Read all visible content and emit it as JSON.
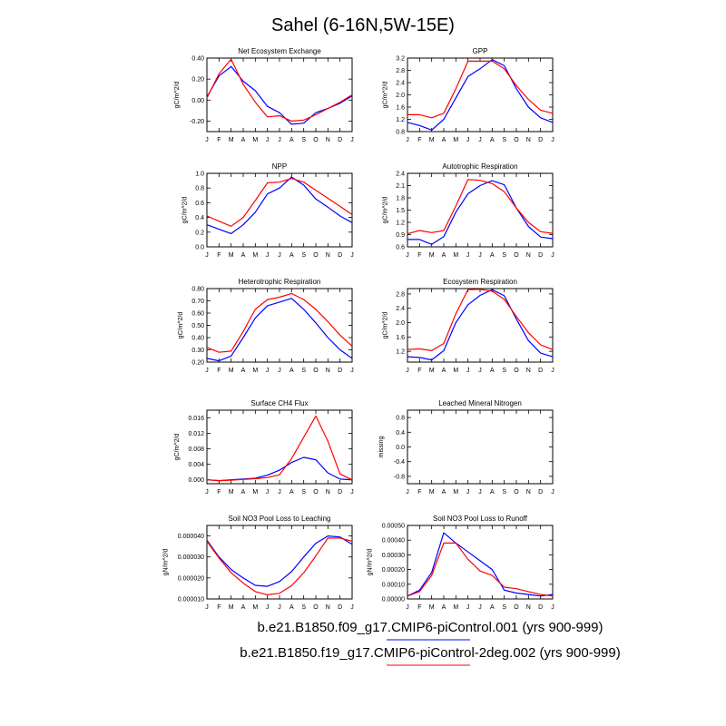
{
  "title": "Sahel (6-16N,5W-15E)",
  "month_labels": [
    "J",
    "F",
    "M",
    "A",
    "M",
    "J",
    "J",
    "A",
    "S",
    "O",
    "N",
    "D",
    "J"
  ],
  "series": [
    {
      "name": "b.e21.B1850.f09_g17.CMIP6-piControl.001 (yrs 900-999)",
      "color": "#0000ff"
    },
    {
      "name": "b.e21.B1850.f19_g17.CMIP6-piControl-2deg.002 (yrs 900-999)",
      "color": "#ff0000"
    }
  ],
  "chart_data": [
    {
      "type": "line",
      "title": "Net Ecosystem Exchange",
      "ylabel": "gC/m^2/d",
      "ylim": [
        -0.3,
        0.4
      ],
      "yticks": [
        "0.40",
        "0.20",
        "0.00",
        "-0.20"
      ],
      "ytick_values": [
        0.4,
        0.2,
        0.0,
        -0.2
      ],
      "series": [
        {
          "values": [
            0.03,
            0.23,
            0.32,
            0.18,
            0.09,
            -0.06,
            -0.12,
            -0.23,
            -0.22,
            -0.12,
            -0.08,
            -0.03,
            0.04
          ]
        },
        {
          "values": [
            0.02,
            0.25,
            0.39,
            0.15,
            -0.02,
            -0.16,
            -0.15,
            -0.2,
            -0.19,
            -0.14,
            -0.08,
            -0.02,
            0.05
          ]
        }
      ]
    },
    {
      "type": "line",
      "title": "GPP",
      "ylabel": "gC/m^2/d",
      "ylim": [
        0.8,
        3.2
      ],
      "yticks": [
        "3.2",
        "2.8",
        "2.4",
        "2.0",
        "1.6",
        "1.2",
        "0.8"
      ],
      "ytick_values": [
        3.2,
        2.8,
        2.4,
        2.0,
        1.6,
        1.2,
        0.8
      ],
      "series": [
        {
          "values": [
            1.1,
            1.0,
            0.85,
            1.2,
            1.9,
            2.6,
            2.85,
            3.15,
            2.95,
            2.2,
            1.6,
            1.25,
            1.1
          ]
        },
        {
          "values": [
            1.35,
            1.35,
            1.25,
            1.4,
            2.2,
            3.1,
            3.1,
            3.1,
            2.85,
            2.3,
            1.85,
            1.5,
            1.4
          ]
        }
      ]
    },
    {
      "type": "line",
      "title": "NPP",
      "ylabel": "gC/m^2/d",
      "ylim": [
        0.0,
        1.0
      ],
      "yticks": [
        "1.0",
        "0.8",
        "0.6",
        "0.4",
        "0.2",
        "0.0"
      ],
      "ytick_values": [
        1.0,
        0.8,
        0.6,
        0.4,
        0.2,
        0.0
      ],
      "series": [
        {
          "values": [
            0.3,
            0.24,
            0.18,
            0.3,
            0.47,
            0.72,
            0.8,
            0.95,
            0.84,
            0.65,
            0.54,
            0.42,
            0.33
          ]
        },
        {
          "values": [
            0.42,
            0.35,
            0.28,
            0.4,
            0.63,
            0.87,
            0.88,
            0.93,
            0.88,
            0.77,
            0.66,
            0.55,
            0.44
          ]
        }
      ]
    },
    {
      "type": "line",
      "title": "Autotrophic Respiration",
      "ylabel": "gC/m^2/d",
      "ylim": [
        0.6,
        2.4
      ],
      "yticks": [
        "2.4",
        "2.1",
        "1.8",
        "1.5",
        "1.2",
        "0.9",
        "0.6"
      ],
      "ytick_values": [
        2.4,
        2.1,
        1.8,
        1.5,
        1.2,
        0.9,
        0.6
      ],
      "series": [
        {
          "values": [
            0.78,
            0.78,
            0.66,
            0.85,
            1.45,
            1.9,
            2.1,
            2.22,
            2.12,
            1.55,
            1.1,
            0.84,
            0.8
          ]
        },
        {
          "values": [
            0.92,
            1.0,
            0.95,
            1.0,
            1.6,
            2.25,
            2.23,
            2.15,
            1.95,
            1.55,
            1.2,
            0.97,
            0.93
          ]
        }
      ]
    },
    {
      "type": "line",
      "title": "Heterotrophic Respiration",
      "ylabel": "gC/m^2/d",
      "ylim": [
        0.2,
        0.8
      ],
      "yticks": [
        "0.80",
        "0.70",
        "0.60",
        "0.50",
        "0.40",
        "0.30",
        "0.20"
      ],
      "ytick_values": [
        0.8,
        0.7,
        0.6,
        0.5,
        0.4,
        0.3,
        0.2
      ],
      "series": [
        {
          "values": [
            0.23,
            0.21,
            0.25,
            0.4,
            0.56,
            0.66,
            0.69,
            0.72,
            0.63,
            0.52,
            0.4,
            0.3,
            0.23
          ]
        },
        {
          "values": [
            0.32,
            0.28,
            0.29,
            0.45,
            0.63,
            0.71,
            0.73,
            0.76,
            0.71,
            0.63,
            0.53,
            0.42,
            0.33
          ]
        }
      ]
    },
    {
      "type": "line",
      "title": "Ecosystem Respiration",
      "ylabel": "gC/m^2/d",
      "ylim": [
        0.9,
        2.95
      ],
      "yticks": [
        "2.8",
        "2.4",
        "2.0",
        "1.6",
        "1.2"
      ],
      "ytick_values": [
        2.8,
        2.4,
        2.0,
        1.6,
        1.2
      ],
      "series": [
        {
          "values": [
            1.05,
            1.03,
            0.96,
            1.22,
            2.0,
            2.5,
            2.76,
            2.92,
            2.75,
            2.1,
            1.5,
            1.15,
            1.05
          ]
        },
        {
          "values": [
            1.25,
            1.27,
            1.22,
            1.42,
            2.25,
            2.92,
            2.93,
            2.88,
            2.65,
            2.17,
            1.72,
            1.38,
            1.25
          ]
        }
      ]
    },
    {
      "type": "line",
      "title": "Surface CH4 Flux",
      "ylabel": "gC/m^2/d",
      "ylim": [
        -0.001,
        0.018
      ],
      "yticks": [
        "0.016",
        "0.012",
        "0.008",
        "0.004",
        "0.000"
      ],
      "ytick_values": [
        0.016,
        0.012,
        0.008,
        0.004,
        0.0
      ],
      "series": [
        {
          "values": [
            0.0,
            -0.0002,
            0.0,
            0.0002,
            0.0004,
            0.0012,
            0.0025,
            0.0045,
            0.0058,
            0.0052,
            0.0018,
            0.0002,
            0.0
          ]
        },
        {
          "values": [
            0.0,
            -0.0002,
            -0.0001,
            0.0001,
            0.0003,
            0.0006,
            0.0013,
            0.0055,
            0.011,
            0.0165,
            0.01,
            0.0015,
            0.0
          ]
        }
      ]
    },
    {
      "type": "line",
      "title": "Leached Mineral Nitrogen",
      "ylabel": "missing",
      "ylim": [
        -1.0,
        1.0
      ],
      "yticks": [
        "0.8",
        "0.4",
        "0.0",
        "-0.4",
        "-0.8"
      ],
      "ytick_values": [
        0.8,
        0.4,
        0.0,
        -0.4,
        -0.8
      ],
      "series": []
    },
    {
      "type": "line",
      "title": "Soil NO3 Pool Loss to Leaching",
      "ylabel": "gN/m^2/d",
      "ylim": [
        1e-05,
        4.5e-05
      ],
      "yticks": [
        "0.000040",
        "0.000030",
        "0.000020",
        "0.000010"
      ],
      "ytick_values": [
        4e-05,
        3e-05,
        2e-05,
        1e-05
      ],
      "series": [
        {
          "values": [
            3.8e-05,
            3e-05,
            2.4e-05,
            2e-05,
            1.65e-05,
            1.6e-05,
            1.83e-05,
            2.3e-05,
            3e-05,
            3.65e-05,
            4e-05,
            3.95e-05,
            3.6e-05
          ]
        },
        {
          "values": [
            3.75e-05,
            2.95e-05,
            2.25e-05,
            1.75e-05,
            1.35e-05,
            1.2e-05,
            1.27e-05,
            1.63e-05,
            2.25e-05,
            3.05e-05,
            3.9e-05,
            3.9e-05,
            3.75e-05
          ]
        }
      ]
    },
    {
      "type": "line",
      "title": "Soil NO3 Pool Loss to Runoff",
      "ylabel": "gN/m^2/d",
      "ylim": [
        0.0,
        0.0005
      ],
      "yticks": [
        "0.00050",
        "0.00040",
        "0.00030",
        "0.00020",
        "0.00010",
        "0.00000"
      ],
      "ytick_values": [
        0.0005,
        0.0004,
        0.0003,
        0.0002,
        0.0001,
        0.0
      ],
      "series": [
        {
          "values": [
            2e-05,
            6e-05,
            0.00018,
            0.00045,
            0.00038,
            0.00032,
            0.00026,
            0.0002,
            6e-05,
            4e-05,
            3e-05,
            2e-05,
            3e-05
          ]
        },
        {
          "values": [
            2e-05,
            5e-05,
            0.00016,
            0.00038,
            0.00038,
            0.00027,
            0.00019,
            0.00016,
            8e-05,
            7e-05,
            5e-05,
            3e-05,
            2e-05
          ]
        }
      ]
    }
  ]
}
